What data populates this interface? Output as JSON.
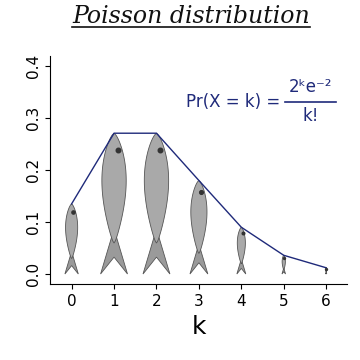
{
  "chart_data": {
    "type": "line",
    "title": "Poisson distribution",
    "x_label": "k",
    "annotation": {
      "lhs": "Pr(X = k) =",
      "numerator": "2ᵏe⁻²",
      "denominator": "k!"
    },
    "x": [
      0,
      1,
      2,
      3,
      4,
      5,
      6
    ],
    "values": [
      0.135,
      0.271,
      0.271,
      0.18,
      0.09,
      0.036,
      0.012
    ],
    "color": "#1f2a7a",
    "marker": "fish",
    "xlim": [
      -0.5,
      6.5
    ],
    "xticks": [
      0,
      1,
      2,
      3,
      4,
      5,
      6
    ],
    "ylim": [
      -0.02,
      0.42
    ],
    "yticks": [
      0.0,
      0.1,
      0.2,
      0.3,
      0.4
    ],
    "grid": false
  }
}
